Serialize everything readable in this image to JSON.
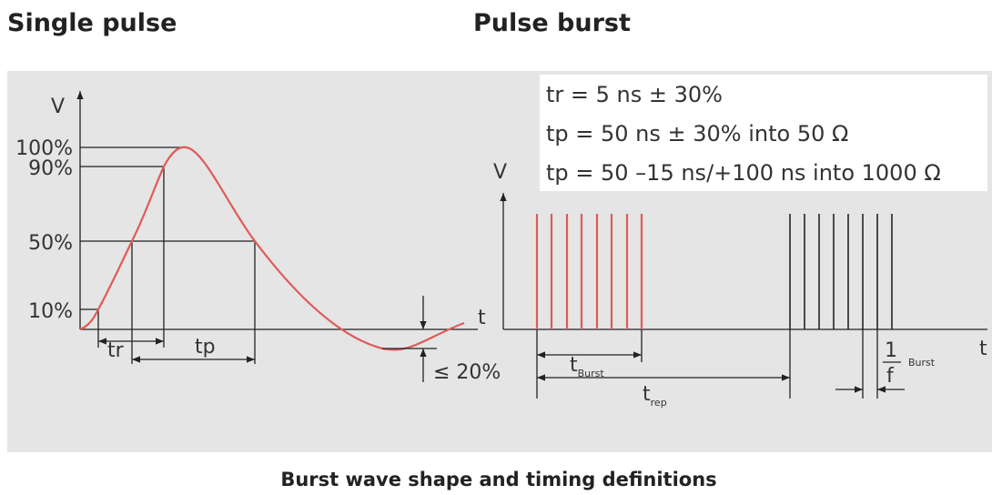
{
  "titles": {
    "single": "Single pulse",
    "burst": "Pulse burst"
  },
  "single_pulse": {
    "y_axis": "V",
    "x_axis": "t",
    "levels": [
      "100%",
      "90%",
      "50%",
      "10%"
    ],
    "tr": "tr",
    "tp": "tp",
    "undershoot": "≤ 20%"
  },
  "pulse_burst": {
    "specs": [
      "tr = 5 ns ± 30%",
      "tp = 50 ns ± 30% into 50 Ω",
      "tp = 50 –15 ns/+100 ns into 1000 Ω"
    ],
    "y_axis": "V",
    "x_axis": "t",
    "t_burst": {
      "symbol": "t",
      "subscript": "Burst"
    },
    "t_rep": {
      "symbol": "t",
      "subscript": "rep"
    },
    "frequency": {
      "numerator": "1",
      "denominator": "f",
      "subscript": "Burst"
    }
  },
  "caption": "Burst wave shape and timing definitions"
}
